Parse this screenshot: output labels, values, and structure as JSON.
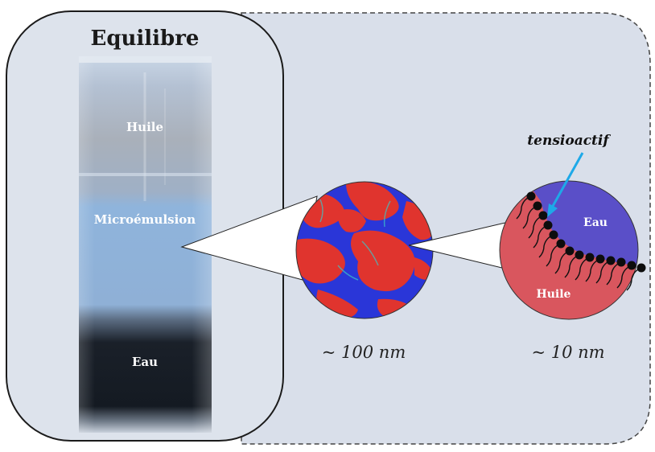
{
  "panel": {
    "title": "Equilibre",
    "phases": {
      "oil": "Huile",
      "micro": "Microémulsion",
      "water": "Eau"
    }
  },
  "zoom1": {
    "scale": "~ 100 nm"
  },
  "zoom2": {
    "scale": "~ 10 nm",
    "water_label": "Eau",
    "oil_label": "Huile",
    "surfactant_label": "tensioactif"
  },
  "colors": {
    "background": "#d9dfea",
    "oil_red": "#e0342e",
    "water_blue": "#3a3ad8",
    "oil_pink": "#d9565e",
    "water_violet": "#5a4fc8",
    "arrow_cyan": "#1ea9e8"
  }
}
